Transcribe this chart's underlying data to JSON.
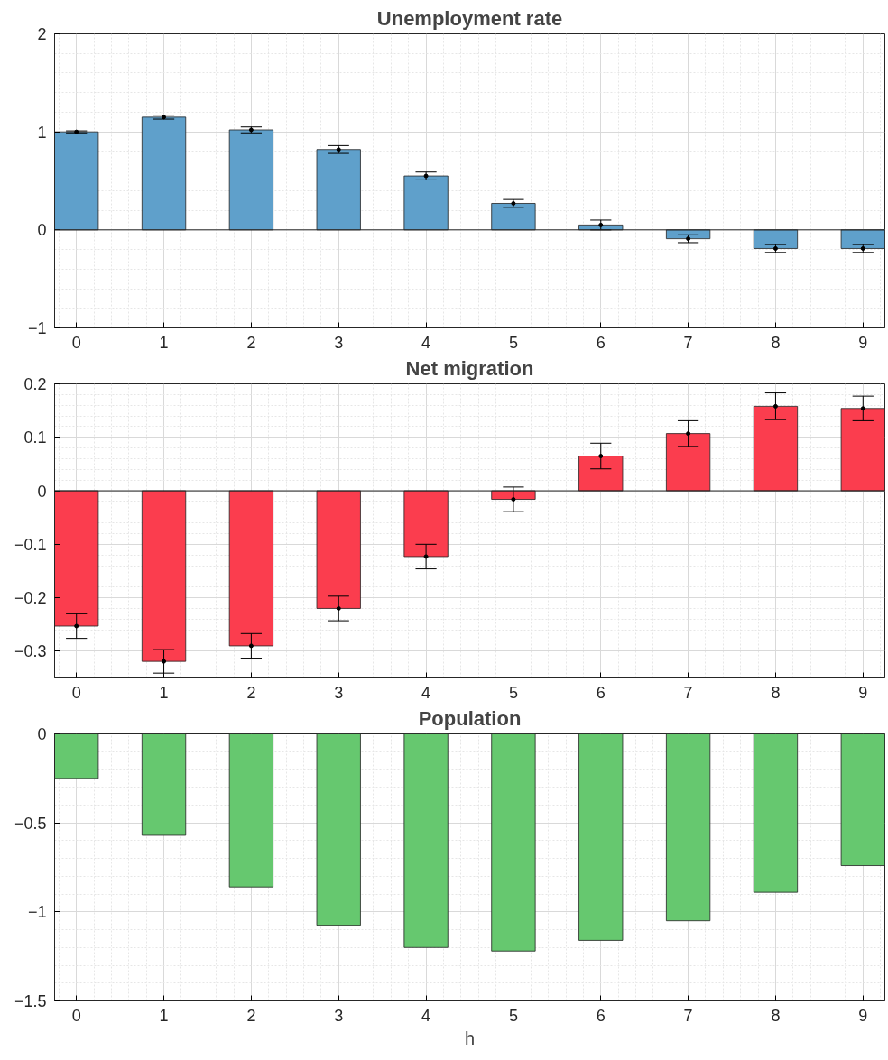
{
  "chart_data": [
    {
      "type": "bar",
      "title": "Unemployment rate",
      "categories": [
        "0",
        "1",
        "2",
        "3",
        "4",
        "5",
        "6",
        "7",
        "8",
        "9"
      ],
      "series": [
        {
          "color": "#5fa0cb",
          "values": [
            1.0,
            1.15,
            1.02,
            0.82,
            0.55,
            0.27,
            0.05,
            -0.09,
            -0.19,
            -0.19
          ]
        },
        {
          "type": "scatter",
          "color": "#000000",
          "marker": "circle",
          "x": [
            "0",
            "1",
            "2",
            "3",
            "4",
            "5",
            "6",
            "7",
            "8",
            "9"
          ],
          "values": [
            1.0,
            1.15,
            1.02,
            0.82,
            0.55,
            0.27,
            0.05,
            -0.09,
            -0.19,
            -0.19
          ],
          "errors": [
            0.01,
            0.02,
            0.03,
            0.04,
            0.04,
            0.04,
            0.05,
            0.04,
            0.04,
            0.04
          ]
        }
      ],
      "ylim": [
        -1,
        2
      ],
      "yticks": [
        -1,
        0,
        1,
        2
      ],
      "grid": true
    },
    {
      "type": "bar",
      "title": "Net migration",
      "categories": [
        "0",
        "1",
        "2",
        "3",
        "4",
        "5",
        "6",
        "7",
        "8",
        "9"
      ],
      "series": [
        {
          "color": "#fb3d4e",
          "values": [
            -0.253,
            -0.319,
            -0.29,
            -0.22,
            -0.123,
            -0.016,
            0.065,
            0.107,
            0.158,
            0.154
          ]
        },
        {
          "type": "scatter",
          "color": "#000000",
          "marker": "circle",
          "x": [
            "0",
            "1",
            "2",
            "3",
            "4",
            "5",
            "6",
            "7",
            "8",
            "9"
          ],
          "values": [
            -0.253,
            -0.319,
            -0.29,
            -0.22,
            -0.123,
            -0.016,
            0.065,
            0.107,
            0.158,
            0.154
          ],
          "errors": [
            0.023,
            0.022,
            0.023,
            0.023,
            0.023,
            0.023,
            0.024,
            0.024,
            0.025,
            0.023
          ]
        }
      ],
      "ylim": [
        -0.35,
        0.2
      ],
      "yticks": [
        -0.3,
        -0.2,
        -0.1,
        0,
        0.1,
        0.2
      ],
      "grid": true
    },
    {
      "type": "bar",
      "title": "Population",
      "xlabel": "h",
      "categories": [
        "0",
        "1",
        "2",
        "3",
        "4",
        "5",
        "6",
        "7",
        "8",
        "9"
      ],
      "series": [
        {
          "color": "#66c86f",
          "values": [
            -0.25,
            -0.57,
            -0.86,
            -1.075,
            -1.2,
            -1.22,
            -1.16,
            -1.05,
            -0.89,
            -0.74
          ]
        }
      ],
      "ylim": [
        -1.5,
        0
      ],
      "yticks": [
        -1.5,
        -1,
        -0.5,
        0
      ],
      "grid": true
    }
  ]
}
